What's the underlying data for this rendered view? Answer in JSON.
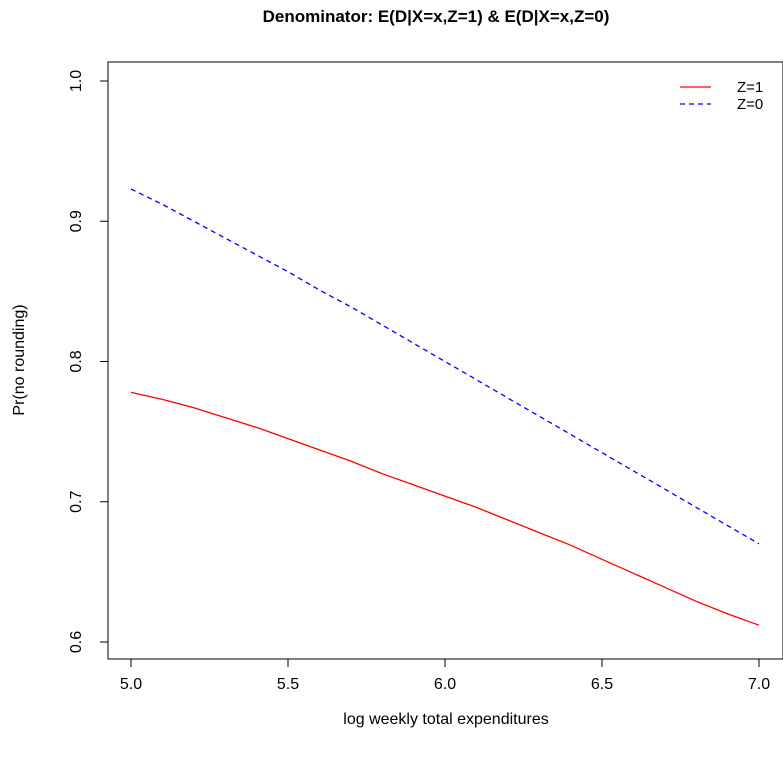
{
  "chart_data": {
    "type": "line",
    "title": "Denominator: E(D|X=x,Z=1) & E(D|X=x,Z=0)",
    "xlabel": "log weekly total expenditures",
    "ylabel": "Pr(no rounding)",
    "xlim": [
      5.0,
      7.0
    ],
    "ylim": [
      0.6,
      1.0
    ],
    "xticks": [
      5.0,
      5.5,
      6.0,
      6.5,
      7.0
    ],
    "xtick_labels": [
      "5.0",
      "5.5",
      "6.0",
      "6.5",
      "7.0"
    ],
    "yticks": [
      0.6,
      0.7,
      0.8,
      0.9,
      1.0
    ],
    "ytick_labels": [
      "0.6",
      "0.7",
      "0.8",
      "0.9",
      "1.0"
    ],
    "grid": false,
    "legend_position": "top-right",
    "series": [
      {
        "name": "Z=1",
        "color": "#ff0000",
        "line_style": "solid",
        "x": [
          5.0,
          5.1,
          5.2,
          5.3,
          5.4,
          5.5,
          5.6,
          5.7,
          5.8,
          5.9,
          6.0,
          6.1,
          6.2,
          6.3,
          6.4,
          6.5,
          6.6,
          6.7,
          6.8,
          6.9,
          7.0
        ],
        "y": [
          0.778,
          0.773,
          0.767,
          0.76,
          0.753,
          0.745,
          0.737,
          0.729,
          0.72,
          0.712,
          0.704,
          0.696,
          0.687,
          0.678,
          0.669,
          0.659,
          0.649,
          0.639,
          0.629,
          0.62,
          0.612
        ]
      },
      {
        "name": "Z=0",
        "color": "#0000ff",
        "line_style": "dashed",
        "x": [
          5.0,
          5.1,
          5.2,
          5.3,
          5.4,
          5.5,
          5.6,
          5.7,
          5.8,
          5.9,
          6.0,
          6.1,
          6.2,
          6.3,
          6.4,
          6.5,
          6.6,
          6.7,
          6.8,
          6.9,
          7.0
        ],
        "y": [
          0.923,
          0.912,
          0.9,
          0.888,
          0.876,
          0.864,
          0.851,
          0.839,
          0.826,
          0.813,
          0.8,
          0.787,
          0.774,
          0.761,
          0.748,
          0.735,
          0.722,
          0.709,
          0.696,
          0.683,
          0.67
        ]
      }
    ]
  }
}
